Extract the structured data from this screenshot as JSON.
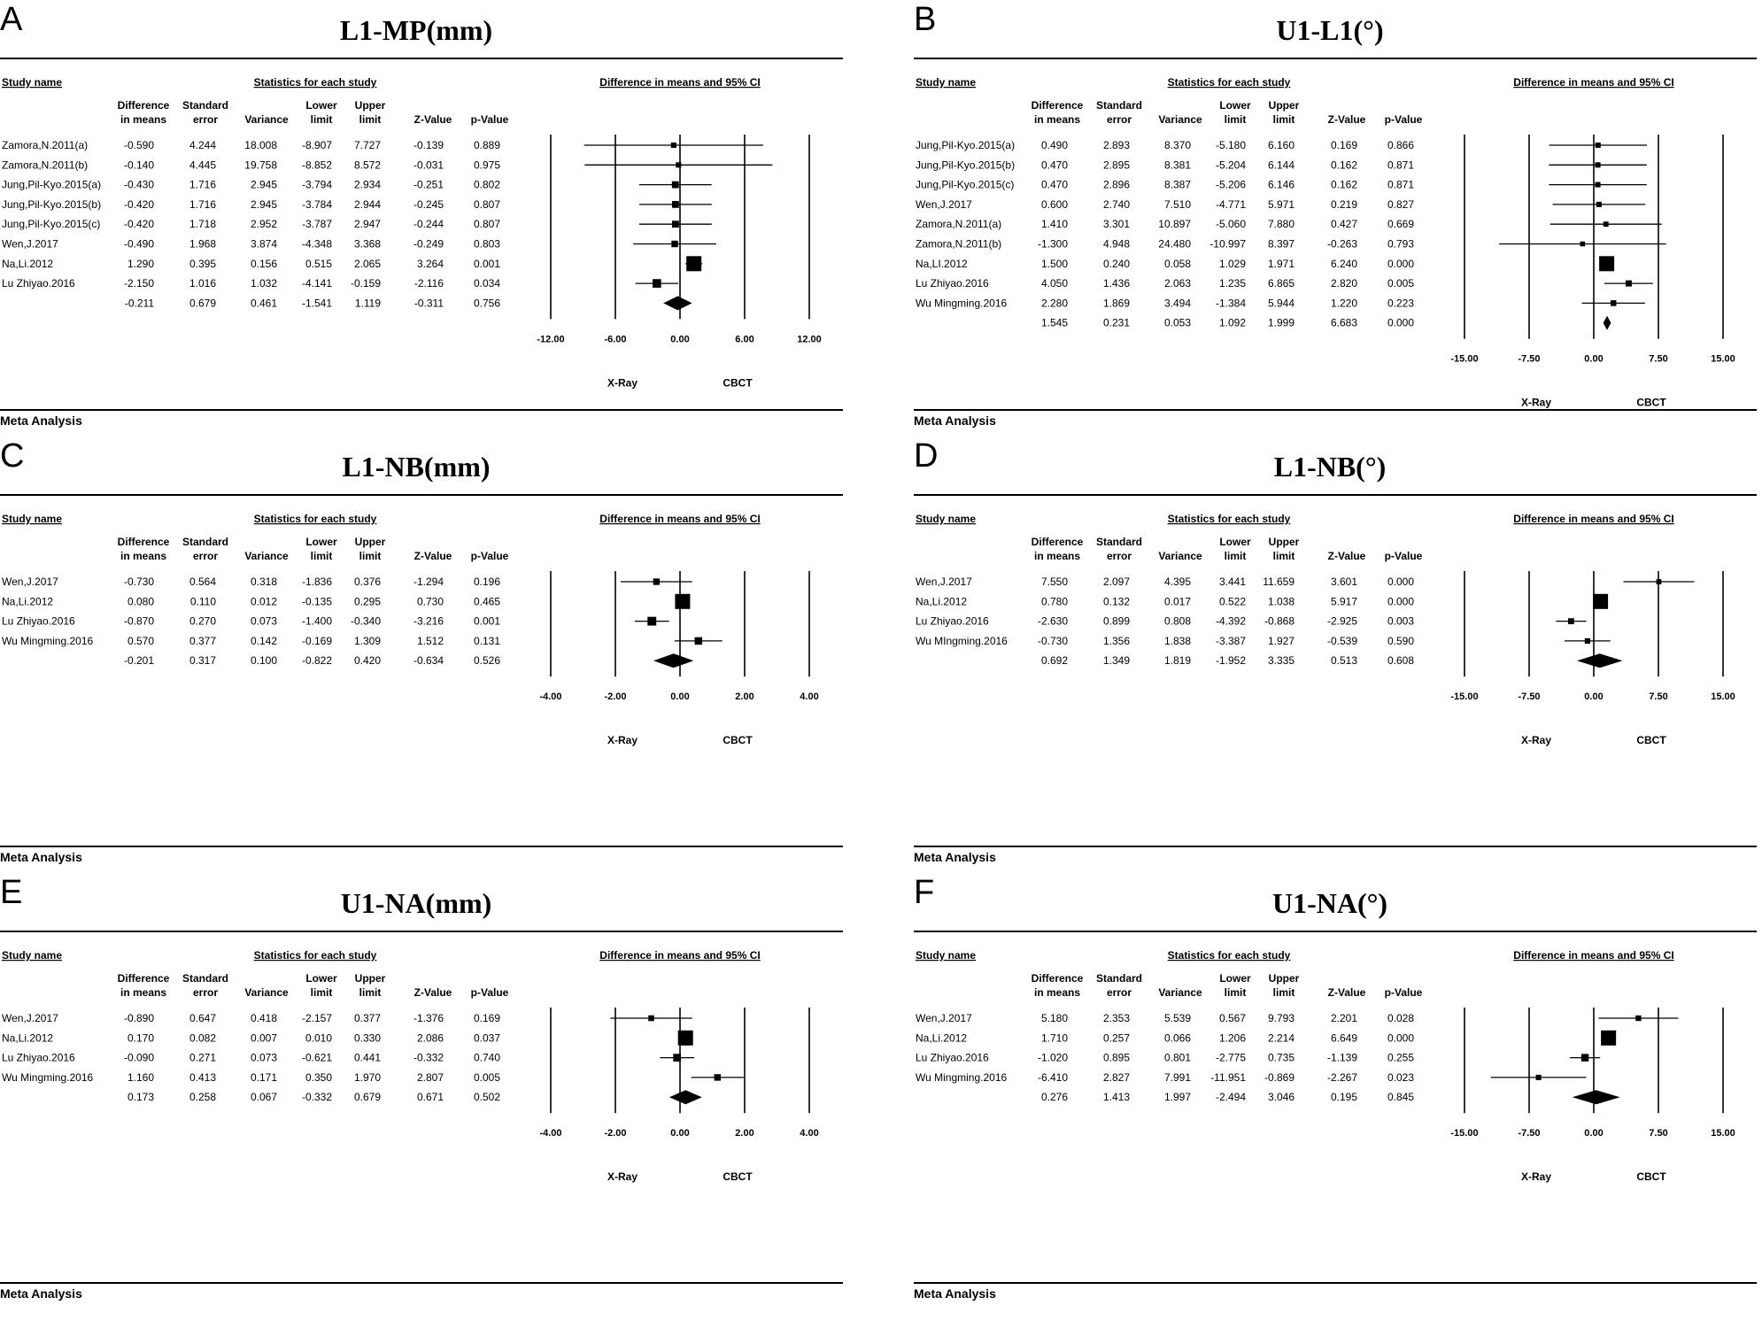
{
  "figure": {
    "panels": [
      {
        "letter": "A",
        "title": "L1-MP(mm)",
        "footer": "Meta Analysis",
        "header": {
          "study_name": "Study name",
          "stats_group": "Statistics for each study",
          "plot_group": "Difference in means and 95% CI",
          "columns": [
            [
              "Difference",
              "in means"
            ],
            [
              "Standard",
              "error"
            ],
            [
              "",
              "Variance"
            ],
            [
              "Lower",
              "limit"
            ],
            [
              "Upper",
              "limit"
            ],
            [
              "",
              "Z-Value"
            ],
            [
              "",
              "p-Value"
            ]
          ]
        },
        "labels": {
          "left": "X-Ray",
          "right": "CBCT"
        }
      },
      {
        "letter": "B",
        "title": "U1-L1(°)",
        "footer": "Meta Analysis",
        "header": {
          "study_name": "Study name",
          "stats_group": "Statistics for each study",
          "plot_group": "Difference in means and 95% CI",
          "columns": [
            [
              "Difference",
              "in means"
            ],
            [
              "Standard",
              "error"
            ],
            [
              "",
              "Variance"
            ],
            [
              "Lower",
              "limit"
            ],
            [
              "Upper",
              "limit"
            ],
            [
              "",
              "Z-Value"
            ],
            [
              "",
              "p-Value"
            ]
          ]
        },
        "labels": {
          "left": "X-Ray",
          "right": "CBCT"
        }
      },
      {
        "letter": "C",
        "title": "L1-NB(mm)",
        "footer": "Meta Analysis",
        "header": {
          "study_name": "Study name",
          "stats_group": "Statistics for each study",
          "plot_group": "Difference in means and 95% CI",
          "columns": [
            [
              "Difference",
              "in means"
            ],
            [
              "Standard",
              "error"
            ],
            [
              "",
              "Variance"
            ],
            [
              "Lower",
              "limit"
            ],
            [
              "Upper",
              "limit"
            ],
            [
              "",
              "Z-Value"
            ],
            [
              "",
              "p-Value"
            ]
          ]
        },
        "labels": {
          "left": "X-Ray",
          "right": "CBCT"
        }
      },
      {
        "letter": "D",
        "title": "L1-NB(°)",
        "footer": "Meta Analysis",
        "header": {
          "study_name": "Study name",
          "stats_group": "Statistics for each study",
          "plot_group": "Difference in means and 95% CI",
          "columns": [
            [
              "Difference",
              "in means"
            ],
            [
              "Standard",
              "error"
            ],
            [
              "",
              "Variance"
            ],
            [
              "Lower",
              "limit"
            ],
            [
              "Upper",
              "limit"
            ],
            [
              "",
              "Z-Value"
            ],
            [
              "",
              "p-Value"
            ]
          ]
        },
        "labels": {
          "left": "X-Ray",
          "right": "CBCT"
        }
      },
      {
        "letter": "E",
        "title": "U1-NA(mm)",
        "footer": "Meta Analysis",
        "header": {
          "study_name": "Study name",
          "stats_group": "Statistics for each study",
          "plot_group": "Difference in means and 95% CI",
          "columns": [
            [
              "Difference",
              "in means"
            ],
            [
              "Standard",
              "error"
            ],
            [
              "",
              "Variance"
            ],
            [
              "Lower",
              "limit"
            ],
            [
              "Upper",
              "limit"
            ],
            [
              "",
              "Z-Value"
            ],
            [
              "",
              "p-Value"
            ]
          ]
        },
        "labels": {
          "left": "X-Ray",
          "right": "CBCT"
        }
      },
      {
        "letter": "F",
        "title": "U1-NA(°)",
        "footer": "Meta Analysis",
        "header": {
          "study_name": "Study name",
          "stats_group": "Statistics for each study",
          "plot_group": "Difference in means and 95% CI",
          "columns": [
            [
              "Difference",
              "in means"
            ],
            [
              "Standard",
              "error"
            ],
            [
              "",
              "Variance"
            ],
            [
              "Lower",
              "limit"
            ],
            [
              "Upper",
              "limit"
            ],
            [
              "",
              "Z-Value"
            ],
            [
              "",
              "p-Value"
            ]
          ]
        },
        "labels": {
          "left": "X-Ray",
          "right": "CBCT"
        }
      }
    ]
  },
  "chart_data": [
    {
      "type": "forest",
      "panel": "A",
      "title": "L1-MP(mm)",
      "xlim": [
        -12,
        12
      ],
      "ticks": [
        -12,
        -6,
        0,
        6,
        12
      ],
      "tick_labels": [
        "-12.00",
        "-6.00",
        "0.00",
        "6.00",
        "12.00"
      ],
      "xlabel_left": "X-Ray",
      "xlabel_right": "CBCT",
      "studies": [
        {
          "name": "Zamora,N.2011(a)",
          "values": [
            "-0.590",
            "4.244",
            "18.008",
            "-8.907",
            "7.727",
            "-0.139",
            "0.889"
          ]
        },
        {
          "name": "Zamora,N.2011(b)",
          "values": [
            "-0.140",
            "4.445",
            "19.758",
            "-8.852",
            "8.572",
            "-0.031",
            "0.975"
          ]
        },
        {
          "name": "Jung,Pil-Kyo.2015(a)",
          "values": [
            "-0.430",
            "1.716",
            "2.945",
            "-3.794",
            "2.934",
            "-0.251",
            "0.802"
          ]
        },
        {
          "name": "Jung,Pil-Kyo.2015(b)",
          "values": [
            "-0.420",
            "1.716",
            "2.945",
            "-3.784",
            "2.944",
            "-0.245",
            "0.807"
          ]
        },
        {
          "name": "Jung,Pil-Kyo.2015(c)",
          "values": [
            "-0.420",
            "1.718",
            "2.952",
            "-3.787",
            "2.947",
            "-0.244",
            "0.807"
          ]
        },
        {
          "name": "Wen,J.2017",
          "values": [
            "-0.490",
            "1.968",
            "3.874",
            "-4.348",
            "3.368",
            "-0.249",
            "0.803"
          ]
        },
        {
          "name": "Na,Li.2012",
          "values": [
            "1.290",
            "0.395",
            "0.156",
            "0.515",
            "2.065",
            "3.264",
            "0.001"
          ]
        },
        {
          "name": "Lu Zhiyao.2016",
          "values": [
            "-2.150",
            "1.016",
            "1.032",
            "-4.141",
            "-0.159",
            "-2.116",
            "0.034"
          ]
        }
      ],
      "summary": {
        "values": [
          "-0.211",
          "0.679",
          "0.461",
          "-1.541",
          "1.119",
          "-0.311",
          "0.756"
        ]
      }
    },
    {
      "type": "forest",
      "panel": "B",
      "title": "U1-L1(°)",
      "xlim": [
        -15,
        15
      ],
      "ticks": [
        -15,
        -7.5,
        0,
        7.5,
        15
      ],
      "tick_labels": [
        "-15.00",
        "-7.50",
        "0.00",
        "7.50",
        "15.00"
      ],
      "xlabel_left": "X-Ray",
      "xlabel_right": "CBCT",
      "studies": [
        {
          "name": "Jung,Pil-Kyo.2015(a)",
          "values": [
            "0.490",
            "2.893",
            "8.370",
            "-5.180",
            "6.160",
            "0.169",
            "0.866"
          ]
        },
        {
          "name": "Jung,Pil-Kyo.2015(b)",
          "values": [
            "0.470",
            "2.895",
            "8.381",
            "-5.204",
            "6.144",
            "0.162",
            "0.871"
          ]
        },
        {
          "name": "Jung,Pil-Kyo.2015(c)",
          "values": [
            "0.470",
            "2.896",
            "8.387",
            "-5.206",
            "6.146",
            "0.162",
            "0.871"
          ]
        },
        {
          "name": "Wen,J.2017",
          "values": [
            "0.600",
            "2.740",
            "7.510",
            "-4.771",
            "5.971",
            "0.219",
            "0.827"
          ]
        },
        {
          "name": "Zamora,N.2011(a)",
          "values": [
            "1.410",
            "3.301",
            "10.897",
            "-5.060",
            "7.880",
            "0.427",
            "0.669"
          ]
        },
        {
          "name": "Zamora,N.2011(b)",
          "values": [
            "-1.300",
            "4.948",
            "24.480",
            "-10.997",
            "8.397",
            "-0.263",
            "0.793"
          ]
        },
        {
          "name": "Na,LI.2012",
          "values": [
            "1.500",
            "0.240",
            "0.058",
            "1.029",
            "1.971",
            "6.240",
            "0.000"
          ]
        },
        {
          "name": "Lu Zhiyao.2016",
          "values": [
            "4.050",
            "1.436",
            "2.063",
            "1.235",
            "6.865",
            "2.820",
            "0.005"
          ]
        },
        {
          "name": "Wu Mingming.2016",
          "values": [
            "2.280",
            "1.869",
            "3.494",
            "-1.384",
            "5.944",
            "1.220",
            "0.223"
          ]
        }
      ],
      "summary": {
        "values": [
          "1.545",
          "0.231",
          "0.053",
          "1.092",
          "1.999",
          "6.683",
          "0.000"
        ]
      }
    },
    {
      "type": "forest",
      "panel": "C",
      "title": "L1-NB(mm)",
      "xlim": [
        -4,
        4
      ],
      "ticks": [
        -4,
        -2,
        0,
        2,
        4
      ],
      "tick_labels": [
        "-4.00",
        "-2.00",
        "0.00",
        "2.00",
        "4.00"
      ],
      "xlabel_left": "X-Ray",
      "xlabel_right": "CBCT",
      "studies": [
        {
          "name": "Wen,J.2017",
          "values": [
            "-0.730",
            "0.564",
            "0.318",
            "-1.836",
            "0.376",
            "-1.294",
            "0.196"
          ]
        },
        {
          "name": "Na,Li.2012",
          "values": [
            "0.080",
            "0.110",
            "0.012",
            "-0.135",
            "0.295",
            "0.730",
            "0.465"
          ]
        },
        {
          "name": "Lu Zhiyao.2016",
          "values": [
            "-0.870",
            "0.270",
            "0.073",
            "-1.400",
            "-0.340",
            "-3.216",
            "0.001"
          ]
        },
        {
          "name": "Wu Mingming.2016",
          "values": [
            "0.570",
            "0.377",
            "0.142",
            "-0.169",
            "1.309",
            "1.512",
            "0.131"
          ]
        }
      ],
      "summary": {
        "values": [
          "-0.201",
          "0.317",
          "0.100",
          "-0.822",
          "0.420",
          "-0.634",
          "0.526"
        ]
      }
    },
    {
      "type": "forest",
      "panel": "D",
      "title": "L1-NB(°)",
      "xlim": [
        -15,
        15
      ],
      "ticks": [
        -15,
        -7.5,
        0,
        7.5,
        15
      ],
      "tick_labels": [
        "-15.00",
        "-7.50",
        "0.00",
        "7.50",
        "15.00"
      ],
      "xlabel_left": "X-Ray",
      "xlabel_right": "CBCT",
      "studies": [
        {
          "name": "Wen,J.2017",
          "values": [
            "7.550",
            "2.097",
            "4.395",
            "3.441",
            "11.659",
            "3.601",
            "0.000"
          ]
        },
        {
          "name": "Na,Li.2012",
          "values": [
            "0.780",
            "0.132",
            "0.017",
            "0.522",
            "1.038",
            "5.917",
            "0.000"
          ]
        },
        {
          "name": "Lu Zhiyao.2016",
          "values": [
            "-2.630",
            "0.899",
            "0.808",
            "-4.392",
            "-0.868",
            "-2.925",
            "0.003"
          ]
        },
        {
          "name": "Wu MIngming.2016",
          "values": [
            "-0.730",
            "1.356",
            "1.838",
            "-3.387",
            "1.927",
            "-0.539",
            "0.590"
          ]
        }
      ],
      "summary": {
        "values": [
          "0.692",
          "1.349",
          "1.819",
          "-1.952",
          "3.335",
          "0.513",
          "0.608"
        ]
      }
    },
    {
      "type": "forest",
      "panel": "E",
      "title": "U1-NA(mm)",
      "xlim": [
        -4,
        4
      ],
      "ticks": [
        -4,
        -2,
        0,
        2,
        4
      ],
      "tick_labels": [
        "-4.00",
        "-2.00",
        "0.00",
        "2.00",
        "4.00"
      ],
      "xlabel_left": "X-Ray",
      "xlabel_right": "CBCT",
      "studies": [
        {
          "name": "Wen,J.2017",
          "values": [
            "-0.890",
            "0.647",
            "0.418",
            "-2.157",
            "0.377",
            "-1.376",
            "0.169"
          ]
        },
        {
          "name": "Na,Li.2012",
          "values": [
            "0.170",
            "0.082",
            "0.007",
            "0.010",
            "0.330",
            "2.086",
            "0.037"
          ]
        },
        {
          "name": "Lu Zhiyao.2016",
          "values": [
            "-0.090",
            "0.271",
            "0.073",
            "-0.621",
            "0.441",
            "-0.332",
            "0.740"
          ]
        },
        {
          "name": "Wu Mingming.2016",
          "values": [
            "1.160",
            "0.413",
            "0.171",
            "0.350",
            "1.970",
            "2.807",
            "0.005"
          ]
        }
      ],
      "summary": {
        "values": [
          "0.173",
          "0.258",
          "0.067",
          "-0.332",
          "0.679",
          "0.671",
          "0.502"
        ]
      }
    },
    {
      "type": "forest",
      "panel": "F",
      "title": "U1-NA(°)",
      "xlim": [
        -15,
        15
      ],
      "ticks": [
        -15,
        -7.5,
        0,
        7.5,
        15
      ],
      "tick_labels": [
        "-15.00",
        "-7.50",
        "0.00",
        "7.50",
        "15.00"
      ],
      "xlabel_left": "X-Ray",
      "xlabel_right": "CBCT",
      "studies": [
        {
          "name": "Wen,J.2017",
          "values": [
            "5.180",
            "2.353",
            "5.539",
            "0.567",
            "9.793",
            "2.201",
            "0.028"
          ]
        },
        {
          "name": "Na,Li.2012",
          "values": [
            "1.710",
            "0.257",
            "0.066",
            "1.206",
            "2.214",
            "6.649",
            "0.000"
          ]
        },
        {
          "name": "Lu Zhiyao.2016",
          "values": [
            "-1.020",
            "0.895",
            "0.801",
            "-2.775",
            "0.735",
            "-1.139",
            "0.255"
          ]
        },
        {
          "name": "Wu Mingming.2016",
          "values": [
            "-6.410",
            "2.827",
            "7.991",
            "-11.951",
            "-0.869",
            "-2.267",
            "0.023"
          ]
        }
      ],
      "summary": {
        "values": [
          "0.276",
          "1.413",
          "1.997",
          "-2.494",
          "3.046",
          "0.195",
          "0.845"
        ]
      }
    }
  ]
}
